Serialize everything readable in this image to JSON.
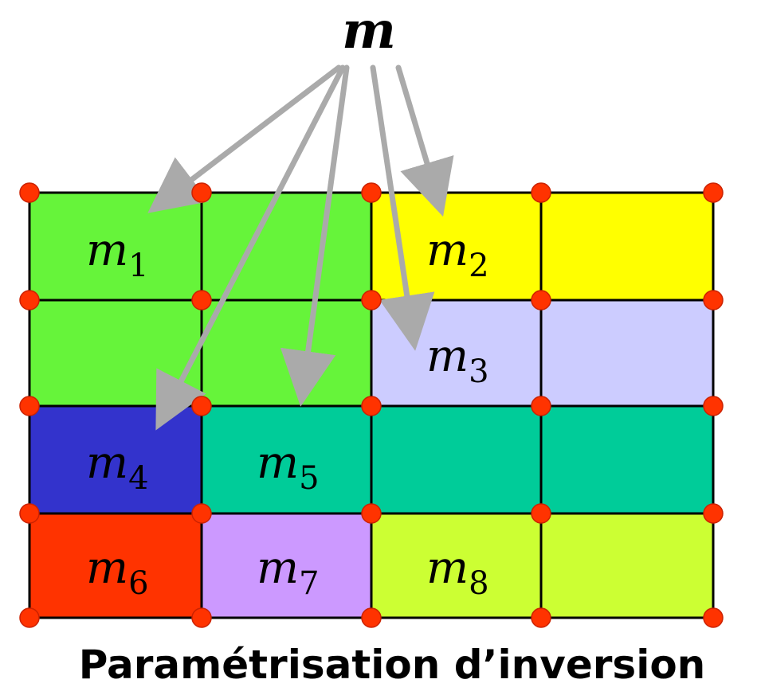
{
  "title_symbol": "m",
  "caption": "Paramétrisation d’inversion",
  "colors": {
    "green": "#66f43a",
    "yellow": "#ffff00",
    "lavender": "#ccccff",
    "dark_blue": "#3333cc",
    "teal": "#00cc99",
    "red": "#ff3300",
    "purple": "#cc99ff",
    "lime": "#ccff33",
    "node": "#ff3300",
    "arrow": "#aaaaaa",
    "grid_line": "#000000"
  },
  "regions": [
    {
      "id": "m1",
      "base": "m",
      "sub": "1",
      "color_key": "green"
    },
    {
      "id": "m2",
      "base": "m",
      "sub": "2",
      "color_key": "yellow"
    },
    {
      "id": "m3",
      "base": "m",
      "sub": "3",
      "color_key": "lavender"
    },
    {
      "id": "m4",
      "base": "m",
      "sub": "4",
      "color_key": "dark_blue"
    },
    {
      "id": "m5",
      "base": "m",
      "sub": "5",
      "color_key": "teal"
    },
    {
      "id": "m6",
      "base": "m",
      "sub": "6",
      "color_key": "red"
    },
    {
      "id": "m7",
      "base": "m",
      "sub": "7",
      "color_key": "purple"
    },
    {
      "id": "m8",
      "base": "m",
      "sub": "8",
      "color_key": "lime"
    }
  ],
  "arrows_point_to": [
    "m1",
    "m4",
    "m5",
    "m3",
    "m2"
  ]
}
